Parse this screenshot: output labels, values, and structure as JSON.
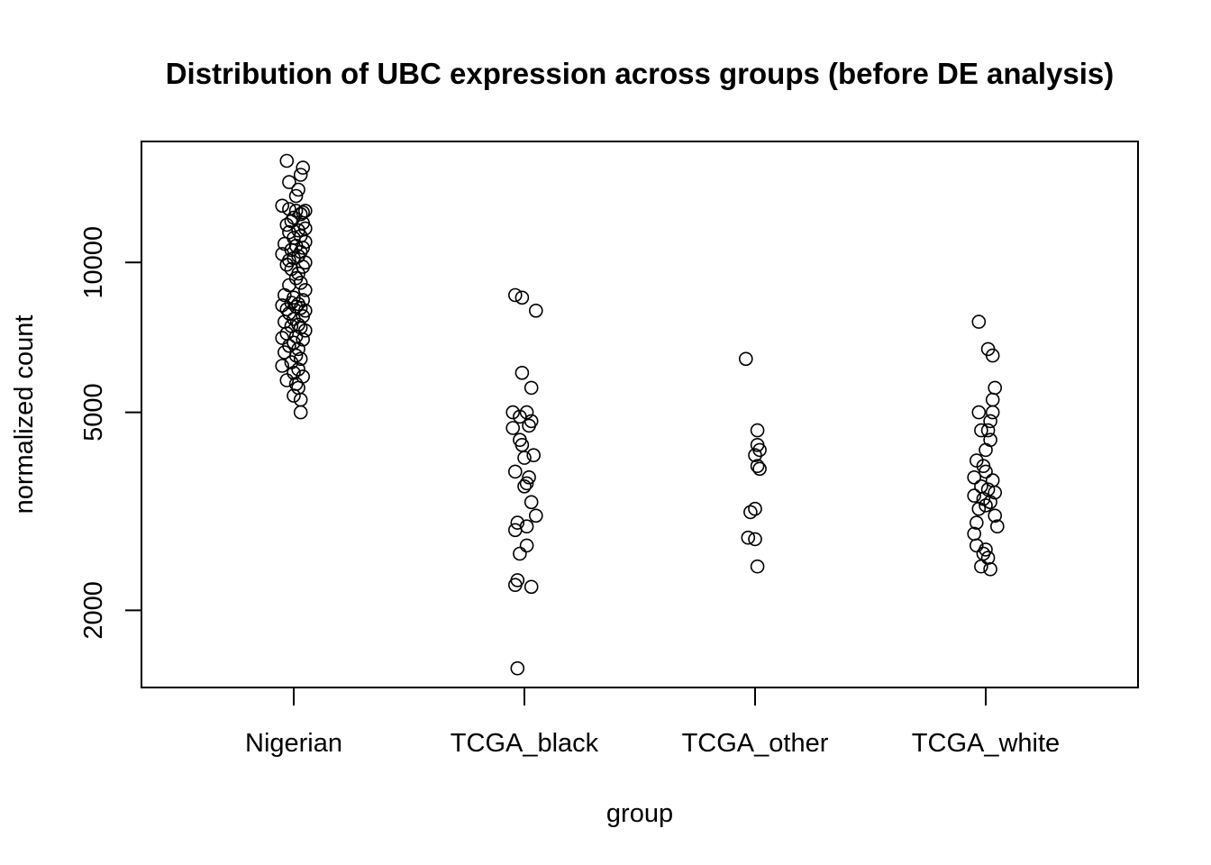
{
  "chart_data": {
    "type": "scatter",
    "title": "Distribution of UBC expression across groups (before DE analysis)",
    "xlabel": "group",
    "ylabel": "normalized count",
    "y_scale": "log",
    "ylim": [
      1400,
      17500
    ],
    "y_ticks": [
      2000,
      5000,
      10000
    ],
    "y_tick_labels": [
      "2000",
      "5000",
      "10000"
    ],
    "categories": [
      "Nigerian",
      "TCGA_black",
      "TCGA_other",
      "TCGA_white"
    ],
    "grid": false,
    "legend": "none",
    "point_marker": "open-circle",
    "series": [
      {
        "category": "Nigerian",
        "points": [
          [
            -0.03,
            16000
          ],
          [
            0.04,
            15500
          ],
          [
            0.03,
            15000
          ],
          [
            -0.02,
            14500
          ],
          [
            0.02,
            14000
          ],
          [
            0.01,
            13600
          ],
          [
            -0.05,
            13000
          ],
          [
            -0.02,
            12800
          ],
          [
            0.01,
            12700
          ],
          [
            0.05,
            12700
          ],
          [
            0.04,
            12600
          ],
          [
            0.03,
            12500
          ],
          [
            0.0,
            12300
          ],
          [
            -0.01,
            12100
          ],
          [
            0.04,
            12000
          ],
          [
            -0.03,
            11900
          ],
          [
            0.05,
            11700
          ],
          [
            0.02,
            11600
          ],
          [
            -0.02,
            11500
          ],
          [
            0.03,
            11300
          ],
          [
            0.0,
            11200
          ],
          [
            0.05,
            11000
          ],
          [
            -0.04,
            10900
          ],
          [
            0.01,
            10800
          ],
          [
            0.04,
            10700
          ],
          [
            -0.01,
            10600
          ],
          [
            0.03,
            10500
          ],
          [
            -0.05,
            10400
          ],
          [
            0.02,
            10300
          ],
          [
            0.0,
            10200
          ],
          [
            -0.02,
            10100
          ],
          [
            0.05,
            10000
          ],
          [
            -0.03,
            9900
          ],
          [
            0.04,
            9800
          ],
          [
            -0.01,
            9700
          ],
          [
            0.02,
            9500
          ],
          [
            0.01,
            9300
          ],
          [
            0.03,
            9100
          ],
          [
            -0.02,
            9000
          ],
          [
            0.05,
            8800
          ],
          [
            -0.04,
            8600
          ],
          [
            0.0,
            8500
          ],
          [
            0.04,
            8400
          ],
          [
            -0.01,
            8300
          ],
          [
            0.02,
            8250
          ],
          [
            -0.05,
            8200
          ],
          [
            0.01,
            8150
          ],
          [
            0.03,
            8100
          ],
          [
            -0.03,
            8050
          ],
          [
            0.05,
            8000
          ],
          [
            -0.02,
            7900
          ],
          [
            0.04,
            7800
          ],
          [
            0.0,
            7700
          ],
          [
            -0.04,
            7600
          ],
          [
            0.02,
            7500
          ],
          [
            -0.01,
            7450
          ],
          [
            0.03,
            7400
          ],
          [
            0.05,
            7300
          ],
          [
            -0.03,
            7200
          ],
          [
            0.01,
            7100
          ],
          [
            -0.05,
            7050
          ],
          [
            0.04,
            7000
          ],
          [
            0.0,
            6900
          ],
          [
            -0.02,
            6800
          ],
          [
            0.02,
            6700
          ],
          [
            -0.04,
            6600
          ],
          [
            0.01,
            6500
          ],
          [
            0.03,
            6400
          ],
          [
            -0.01,
            6300
          ],
          [
            -0.05,
            6200
          ],
          [
            0.02,
            6100
          ],
          [
            0.0,
            6000
          ],
          [
            0.04,
            5900
          ],
          [
            -0.03,
            5800
          ],
          [
            0.01,
            5700
          ],
          [
            0.02,
            5600
          ],
          [
            0.0,
            5400
          ],
          [
            0.03,
            5300
          ],
          [
            0.03,
            5000
          ]
        ]
      },
      {
        "category": "TCGA_black",
        "points": [
          [
            -0.04,
            8600
          ],
          [
            -0.01,
            8500
          ],
          [
            0.05,
            8000
          ],
          [
            -0.01,
            6000
          ],
          [
            0.03,
            5600
          ],
          [
            -0.05,
            5000
          ],
          [
            0.01,
            5000
          ],
          [
            -0.02,
            4900
          ],
          [
            0.03,
            4800
          ],
          [
            0.02,
            4700
          ],
          [
            -0.05,
            4650
          ],
          [
            -0.02,
            4400
          ],
          [
            -0.01,
            4300
          ],
          [
            0.04,
            4100
          ],
          [
            0.0,
            4050
          ],
          [
            -0.04,
            3800
          ],
          [
            0.02,
            3700
          ],
          [
            0.01,
            3600
          ],
          [
            0.0,
            3550
          ],
          [
            0.03,
            3300
          ],
          [
            0.05,
            3100
          ],
          [
            -0.03,
            3000
          ],
          [
            0.01,
            2950
          ],
          [
            -0.04,
            2900
          ],
          [
            0.01,
            2700
          ],
          [
            -0.02,
            2600
          ],
          [
            -0.03,
            2300
          ],
          [
            -0.04,
            2250
          ],
          [
            0.03,
            2230
          ],
          [
            -0.03,
            1530
          ]
        ]
      },
      {
        "category": "TCGA_other",
        "points": [
          [
            -0.04,
            6400
          ],
          [
            0.01,
            4600
          ],
          [
            0.01,
            4300
          ],
          [
            0.02,
            4200
          ],
          [
            0.0,
            4100
          ],
          [
            0.01,
            3900
          ],
          [
            0.02,
            3850
          ],
          [
            0.0,
            3200
          ],
          [
            -0.02,
            3150
          ],
          [
            -0.03,
            2800
          ],
          [
            0.0,
            2780
          ],
          [
            0.01,
            2450
          ]
        ]
      },
      {
        "category": "TCGA_white",
        "points": [
          [
            -0.03,
            7600
          ],
          [
            0.01,
            6700
          ],
          [
            0.03,
            6500
          ],
          [
            0.04,
            5600
          ],
          [
            0.03,
            5300
          ],
          [
            -0.03,
            5000
          ],
          [
            0.03,
            5000
          ],
          [
            0.02,
            4800
          ],
          [
            -0.02,
            4600
          ],
          [
            0.01,
            4600
          ],
          [
            0.02,
            4400
          ],
          [
            0.0,
            4200
          ],
          [
            -0.04,
            4000
          ],
          [
            -0.01,
            3900
          ],
          [
            0.0,
            3800
          ],
          [
            -0.05,
            3700
          ],
          [
            0.03,
            3650
          ],
          [
            -0.02,
            3550
          ],
          [
            0.01,
            3500
          ],
          [
            0.04,
            3450
          ],
          [
            -0.05,
            3400
          ],
          [
            -0.01,
            3350
          ],
          [
            0.02,
            3300
          ],
          [
            0.0,
            3250
          ],
          [
            -0.03,
            3200
          ],
          [
            0.04,
            3100
          ],
          [
            -0.04,
            3000
          ],
          [
            0.05,
            2950
          ],
          [
            -0.05,
            2850
          ],
          [
            -0.04,
            2700
          ],
          [
            0.0,
            2650
          ],
          [
            -0.01,
            2600
          ],
          [
            0.01,
            2550
          ],
          [
            -0.02,
            2450
          ],
          [
            0.02,
            2420
          ]
        ]
      }
    ]
  }
}
